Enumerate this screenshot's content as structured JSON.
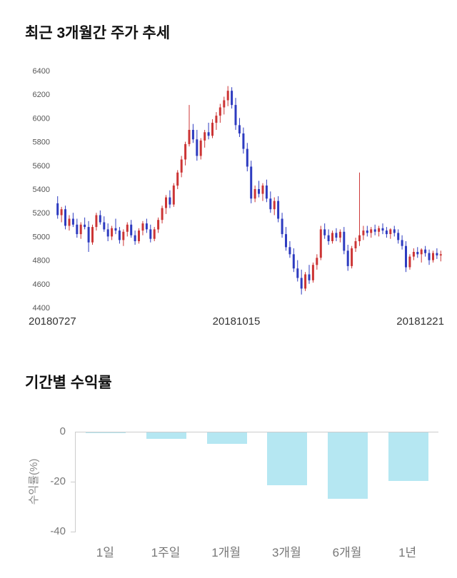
{
  "chart_data": [
    {
      "type": "candlestick",
      "title": "최근 3개월간 주가 추세",
      "ylim": [
        4400,
        6400
      ],
      "yticks": [
        6400,
        6200,
        6000,
        5800,
        5600,
        5400,
        5200,
        5000,
        4800,
        4600,
        4400
      ],
      "x_labels": [
        "20180727",
        "20181015",
        "20181221"
      ],
      "up_color": "#cc3535",
      "down_color": "#2d3bc0",
      "candles": [
        [
          5280,
          5340,
          5150,
          5180
        ],
        [
          5180,
          5250,
          5120,
          5230
        ],
        [
          5230,
          5260,
          5060,
          5090
        ],
        [
          5090,
          5180,
          5050,
          5150
        ],
        [
          5150,
          5200,
          5080,
          5100
        ],
        [
          5100,
          5150,
          4990,
          5020
        ],
        [
          5020,
          5120,
          4980,
          5100
        ],
        [
          5100,
          5160,
          5060,
          5080
        ],
        [
          5080,
          5130,
          4870,
          4950
        ],
        [
          4950,
          5100,
          4930,
          5080
        ],
        [
          5080,
          5200,
          5050,
          5180
        ],
        [
          5180,
          5220,
          5100,
          5120
        ],
        [
          5120,
          5170,
          5040,
          5060
        ],
        [
          5060,
          5110,
          4960,
          5000
        ],
        [
          5000,
          5090,
          4970,
          5070
        ],
        [
          5070,
          5150,
          5020,
          5050
        ],
        [
          5050,
          5080,
          4940,
          4970
        ],
        [
          4970,
          5060,
          4920,
          5040
        ],
        [
          5040,
          5120,
          5000,
          5100
        ],
        [
          5100,
          5140,
          4990,
          5010
        ],
        [
          5010,
          5050,
          4930,
          4960
        ],
        [
          4960,
          5070,
          4940,
          5050
        ],
        [
          5050,
          5130,
          5010,
          5110
        ],
        [
          5110,
          5150,
          5030,
          5060
        ],
        [
          5060,
          5100,
          4950,
          4980
        ],
        [
          4980,
          5080,
          4960,
          5060
        ],
        [
          5060,
          5160,
          5030,
          5140
        ],
        [
          5140,
          5260,
          5110,
          5240
        ],
        [
          5240,
          5350,
          5190,
          5330
        ],
        [
          5330,
          5390,
          5240,
          5270
        ],
        [
          5270,
          5450,
          5250,
          5430
        ],
        [
          5430,
          5560,
          5400,
          5540
        ],
        [
          5540,
          5680,
          5500,
          5650
        ],
        [
          5650,
          5800,
          5600,
          5780
        ],
        [
          5780,
          6110,
          5760,
          5900
        ],
        [
          5900,
          5950,
          5790,
          5820
        ],
        [
          5820,
          5900,
          5640,
          5680
        ],
        [
          5680,
          5830,
          5650,
          5810
        ],
        [
          5810,
          5900,
          5750,
          5880
        ],
        [
          5880,
          5960,
          5820,
          5850
        ],
        [
          5850,
          5990,
          5830,
          5960
        ],
        [
          5960,
          6050,
          5900,
          6020
        ],
        [
          6020,
          6120,
          5960,
          6090
        ],
        [
          6090,
          6180,
          6030,
          6150
        ],
        [
          6150,
          6270,
          6100,
          6230
        ],
        [
          6230,
          6260,
          6080,
          6110
        ],
        [
          6110,
          6170,
          5900,
          5940
        ],
        [
          5940,
          6000,
          5840,
          5870
        ],
        [
          5870,
          5920,
          5700,
          5740
        ],
        [
          5740,
          5790,
          5550,
          5590
        ],
        [
          5590,
          5640,
          5280,
          5320
        ],
        [
          5320,
          5430,
          5290,
          5400
        ],
        [
          5400,
          5470,
          5330,
          5360
        ],
        [
          5360,
          5450,
          5300,
          5430
        ],
        [
          5430,
          5480,
          5290,
          5320
        ],
        [
          5320,
          5380,
          5200,
          5230
        ],
        [
          5230,
          5330,
          5180,
          5300
        ],
        [
          5300,
          5340,
          5120,
          5150
        ],
        [
          5150,
          5200,
          4990,
          5020
        ],
        [
          5020,
          5080,
          4880,
          4910
        ],
        [
          4910,
          4960,
          4820,
          4850
        ],
        [
          4850,
          4900,
          4700,
          4730
        ],
        [
          4730,
          4800,
          4620,
          4650
        ],
        [
          4650,
          4720,
          4510,
          4560
        ],
        [
          4560,
          4700,
          4540,
          4680
        ],
        [
          4680,
          4760,
          4600,
          4630
        ],
        [
          4630,
          4780,
          4610,
          4760
        ],
        [
          4760,
          4850,
          4720,
          4820
        ],
        [
          4820,
          5090,
          4800,
          5060
        ],
        [
          5060,
          5110,
          4980,
          5010
        ],
        [
          5010,
          5060,
          4930,
          4960
        ],
        [
          4960,
          5050,
          4940,
          5030
        ],
        [
          5030,
          5070,
          4960,
          4990
        ],
        [
          4990,
          5060,
          4950,
          5040
        ],
        [
          5040,
          5080,
          4850,
          4880
        ],
        [
          4880,
          4930,
          4710,
          4750
        ],
        [
          4750,
          4920,
          4730,
          4900
        ],
        [
          4900,
          4990,
          4870,
          4960
        ],
        [
          4960,
          5540,
          4920,
          5010
        ],
        [
          5010,
          5090,
          4970,
          5050
        ],
        [
          5050,
          5090,
          5000,
          5030
        ],
        [
          5030,
          5080,
          4990,
          5060
        ],
        [
          5060,
          5100,
          5010,
          5040
        ],
        [
          5040,
          5090,
          5000,
          5070
        ],
        [
          5070,
          5110,
          5020,
          5050
        ],
        [
          5050,
          5080,
          4990,
          5020
        ],
        [
          5020,
          5070,
          4980,
          5060
        ],
        [
          5060,
          5090,
          5000,
          5030
        ],
        [
          5030,
          5060,
          4940,
          4970
        ],
        [
          4970,
          5010,
          4890,
          4920
        ],
        [
          4920,
          4960,
          4700,
          4740
        ],
        [
          4740,
          4850,
          4720,
          4830
        ],
        [
          4830,
          4900,
          4800,
          4870
        ],
        [
          4870,
          4910,
          4820,
          4850
        ],
        [
          4850,
          4900,
          4780,
          4890
        ],
        [
          4890,
          4920,
          4830,
          4860
        ],
        [
          4860,
          4890,
          4760,
          4800
        ],
        [
          4800,
          4880,
          4780,
          4860
        ],
        [
          4860,
          4900,
          4810,
          4840
        ],
        [
          4840,
          4880,
          4790,
          4850
        ]
      ]
    },
    {
      "type": "bar",
      "title": "기간별 수익률",
      "ylabel": "수익률(%)",
      "categories": [
        "1일",
        "1주일",
        "1개월",
        "3개월",
        "6개월",
        "1년"
      ],
      "values": [
        -0.3,
        -2.5,
        -4.5,
        -21,
        -26.5,
        -19.5
      ],
      "ylim": [
        -40,
        0
      ],
      "yticks": [
        0,
        -20,
        -40
      ],
      "bar_color": "#b5e7f2",
      "axis_color": "#cccccc"
    }
  ]
}
